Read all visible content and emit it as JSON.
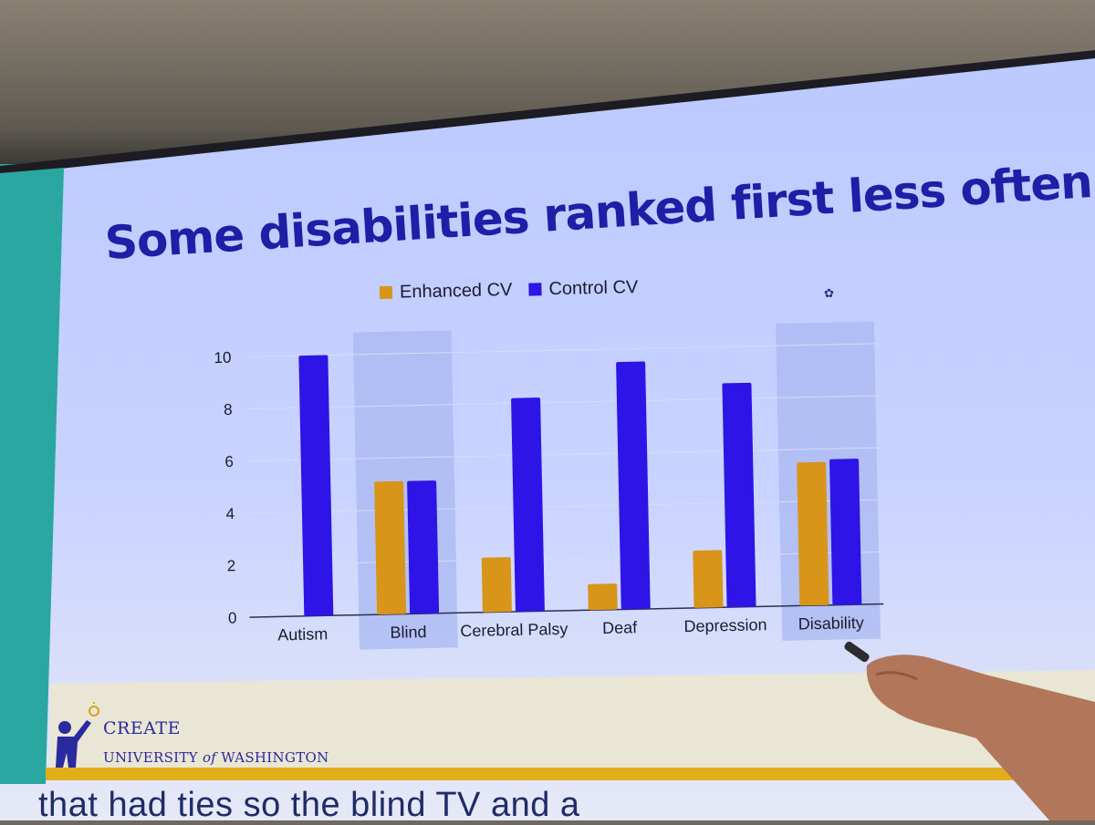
{
  "slide": {
    "title": "Some disabilities ranked first less often",
    "logo_name": "CREATE",
    "logo_university_prefix": "UNIVERSITY",
    "logo_university_of": "of",
    "logo_university_suffix": "WASHINGTON",
    "caption": "that had ties so the blind TV and a"
  },
  "colors": {
    "enhanced": "#d8951a",
    "control": "#2e14e6",
    "highlight": "#a9b8f2",
    "title": "#1e1ea6"
  },
  "chart_data": {
    "type": "bar",
    "title": "Some disabilities ranked first less often",
    "categories": [
      "Autism",
      "Blind",
      "Cerebral Palsy",
      "Deaf",
      "Depression",
      "Disability"
    ],
    "series": [
      {
        "name": "Enhanced CV",
        "values": [
          0,
          5.1,
          2.1,
          1.0,
          2.2,
          5.5
        ]
      },
      {
        "name": "Control CV",
        "values": [
          10,
          5.1,
          8.2,
          9.5,
          8.6,
          5.6
        ]
      }
    ],
    "highlighted_categories": [
      "Blind",
      "Disability"
    ],
    "yticks": [
      0,
      2,
      4,
      6,
      8,
      10
    ],
    "ylim": [
      0,
      10.5
    ],
    "xlabel": "",
    "ylabel": "",
    "grid": true,
    "legend": "top"
  }
}
